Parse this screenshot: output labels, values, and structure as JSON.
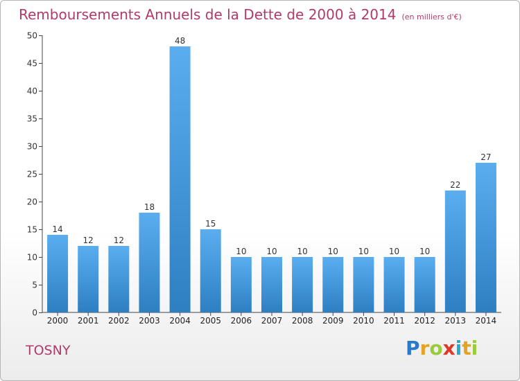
{
  "header": {
    "title": "Remboursements Annuels de la Dette de 2000 à 2014",
    "subtitle": "(en milliers d'€)"
  },
  "commune": "TOSNY",
  "logo": {
    "text": "Proxiti",
    "letters": [
      {
        "char": "P",
        "color": "#2a79c8"
      },
      {
        "char": "r",
        "color": "#e4a321"
      },
      {
        "char": "o",
        "color": "#9acb3b"
      },
      {
        "char": "x",
        "color": "#d93a2b"
      },
      {
        "char": "i",
        "color": "#2aa7c9"
      },
      {
        "char": "t",
        "color": "#e4a321"
      },
      {
        "char": "i",
        "color": "#9acb3b"
      }
    ]
  },
  "colors": {
    "bar_top": "#5aaef0",
    "bar_bottom": "#2d7fc2",
    "axis": "#444444",
    "grid": "#bbbbbb"
  },
  "chart_data": {
    "type": "bar",
    "title": "Remboursements Annuels de la Dette de 2000 à 2014",
    "subtitle": "(en milliers d'€)",
    "xlabel": "",
    "ylabel": "",
    "categories": [
      "2000",
      "2001",
      "2002",
      "2003",
      "2004",
      "2005",
      "2006",
      "2007",
      "2008",
      "2009",
      "2010",
      "2011",
      "2012",
      "2013",
      "2014"
    ],
    "values": [
      14,
      12,
      12,
      18,
      48,
      15,
      10,
      10,
      10,
      10,
      10,
      10,
      10,
      22,
      27
    ],
    "data_labels": [
      "14",
      "12",
      "12",
      "18",
      "48",
      "15",
      "10",
      "10",
      "10",
      "10",
      "10",
      "10",
      "10",
      "22",
      "27"
    ],
    "ylim": [
      0,
      50
    ],
    "yticks": [
      0,
      5,
      10,
      15,
      20,
      25,
      30,
      35,
      40,
      45,
      50
    ],
    "grid": "none",
    "legend": "none"
  }
}
